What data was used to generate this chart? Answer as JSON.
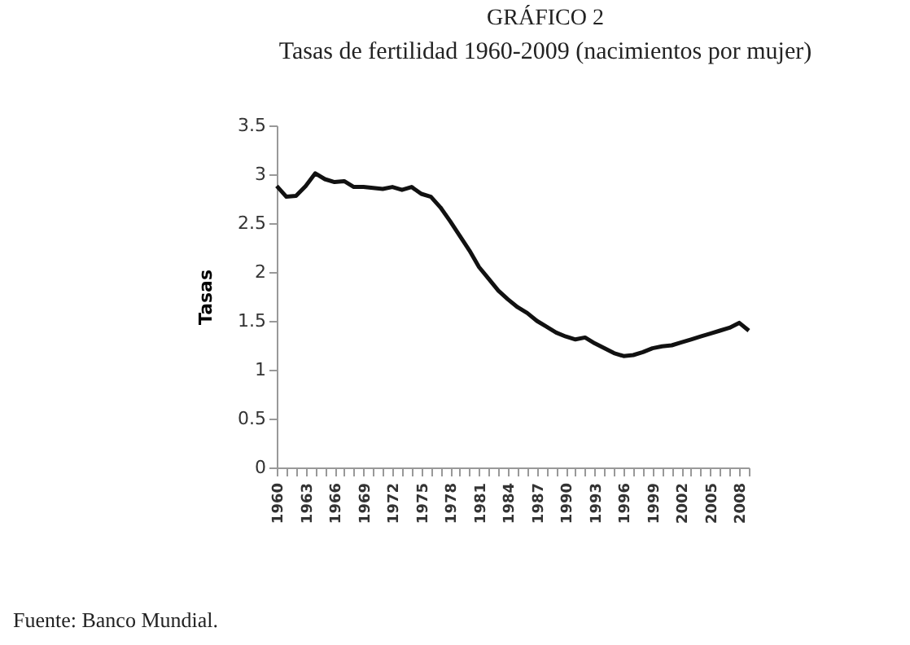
{
  "chart_data": {
    "type": "line",
    "title": "GRÁFICO 2",
    "subtitle": "Tasas de fertilidad 1960-2009 (nacimientos por mujer)",
    "ylabel": "Tasas",
    "categories": [
      "1960",
      null,
      null,
      "1963",
      null,
      null,
      "1966",
      null,
      null,
      "1969",
      null,
      null,
      "1972",
      null,
      null,
      "1975",
      null,
      null,
      "1978",
      null,
      null,
      "1981",
      null,
      null,
      "1984",
      null,
      null,
      "1987",
      null,
      null,
      "1990",
      null,
      null,
      "1993",
      null,
      null,
      "1996",
      null,
      null,
      "1999",
      null,
      null,
      "2002",
      null,
      null,
      "2005",
      null,
      null,
      "2008",
      null
    ],
    "series": [
      {
        "color": "#111111",
        "values": [
          2.88,
          2.77,
          2.78,
          2.88,
          3.01,
          2.95,
          2.92,
          2.93,
          2.87,
          2.87,
          2.86,
          2.85,
          2.87,
          2.84,
          2.87,
          2.8,
          2.77,
          2.66,
          2.52,
          2.37,
          2.22,
          2.05,
          1.93,
          1.81,
          1.72,
          1.64,
          1.58,
          1.5,
          1.44,
          1.38,
          1.34,
          1.31,
          1.33,
          1.27,
          1.22,
          1.17,
          1.14,
          1.15,
          1.18,
          1.22,
          1.24,
          1.25,
          1.28,
          1.31,
          1.34,
          1.37,
          1.4,
          1.43,
          1.48,
          1.4
        ]
      }
    ],
    "ylim": [
      0,
      3.5
    ],
    "yticks": [
      0,
      0.5,
      1,
      1.5,
      2,
      2.5,
      3,
      3.5
    ],
    "grid": false,
    "marker": "none",
    "line_style": "solid",
    "annotations": [
      "Fuente: Banco Mundial."
    ]
  }
}
